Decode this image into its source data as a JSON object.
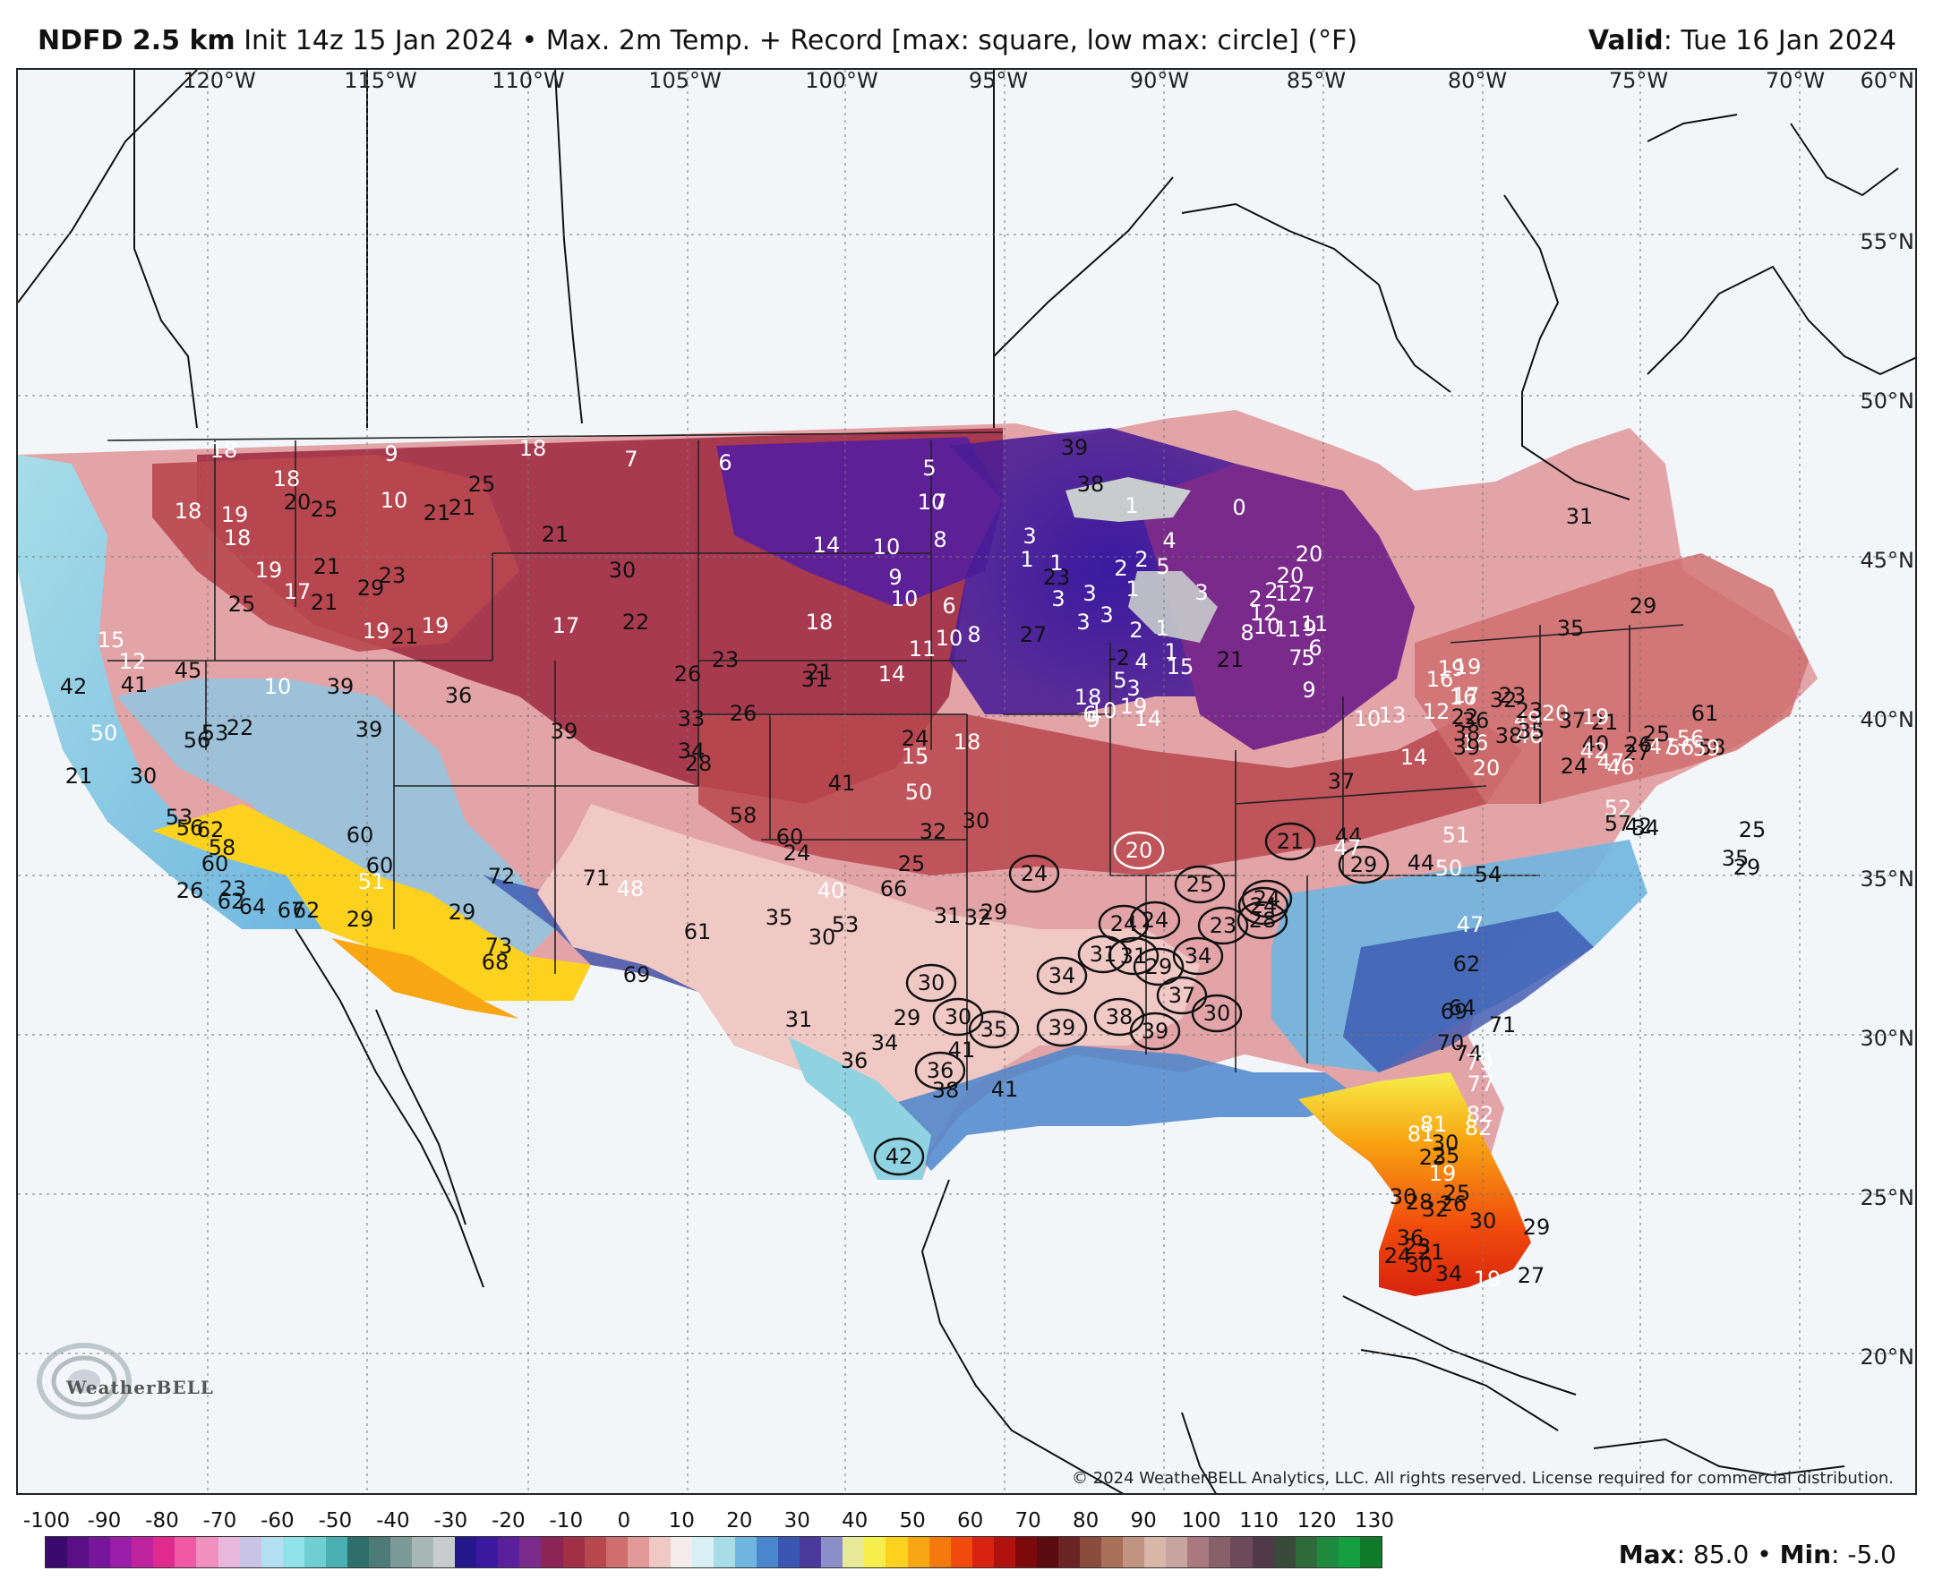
{
  "header": {
    "model": "NDFD 2.5 km",
    "description": "Init 14z 15 Jan 2024 • Max. 2m Temp. + Record [max: square, low max: circle] (°F)",
    "valid_label": "Valid",
    "valid_date": ": Tue 16 Jan 2024"
  },
  "map": {
    "longitude_labels": [
      "120°W",
      "115°W",
      "110°W",
      "105°W",
      "100°W",
      "95°W",
      "90°W",
      "85°W",
      "80°W",
      "75°W",
      "70°W"
    ],
    "latitude_labels": [
      "60°N",
      "55°N",
      "50°N",
      "45°N",
      "40°N",
      "35°N",
      "30°N",
      "25°N",
      "20°N"
    ],
    "temperature_labels": [
      {
        "t": "18",
        "c": "w"
      },
      {
        "t": "9",
        "c": "w"
      },
      {
        "t": "18",
        "c": "w"
      },
      {
        "t": "7",
        "c": "w"
      },
      {
        "t": "6",
        "c": "w"
      },
      {
        "t": "5",
        "c": "w"
      },
      {
        "t": "18",
        "c": "w"
      },
      {
        "t": "25",
        "c": "k"
      },
      {
        "t": "18",
        "c": "w"
      },
      {
        "t": "19",
        "c": "w"
      },
      {
        "t": "20",
        "c": "k"
      },
      {
        "t": "25",
        "c": "k"
      },
      {
        "t": "10",
        "c": "w"
      },
      {
        "t": "21",
        "c": "k"
      },
      {
        "t": "21",
        "c": "k"
      },
      {
        "t": "10",
        "c": "w"
      },
      {
        "t": "7",
        "c": "w"
      },
      {
        "t": "18",
        "c": "w"
      },
      {
        "t": "21",
        "c": "k"
      },
      {
        "t": "14",
        "c": "w"
      },
      {
        "t": "10",
        "c": "w"
      },
      {
        "t": "8",
        "c": "w"
      },
      {
        "t": "19",
        "c": "w"
      },
      {
        "t": "21",
        "c": "k"
      },
      {
        "t": "29",
        "c": "k"
      },
      {
        "t": "23",
        "c": "k"
      },
      {
        "t": "30",
        "c": "k"
      },
      {
        "t": "25",
        "c": "k"
      },
      {
        "t": "17",
        "c": "w"
      },
      {
        "t": "21",
        "c": "k"
      },
      {
        "t": "9",
        "c": "w"
      },
      {
        "t": "10",
        "c": "w"
      },
      {
        "t": "6",
        "c": "w"
      },
      {
        "t": "23",
        "c": "k"
      },
      {
        "t": "19",
        "c": "w"
      },
      {
        "t": "21",
        "c": "k"
      },
      {
        "t": "19",
        "c": "w"
      },
      {
        "t": "17",
        "c": "w"
      },
      {
        "t": "22",
        "c": "k"
      },
      {
        "t": "18",
        "c": "w"
      },
      {
        "t": "11",
        "c": "w"
      },
      {
        "t": "10",
        "c": "w"
      },
      {
        "t": "8",
        "c": "w"
      },
      {
        "t": "23",
        "c": "k"
      },
      {
        "t": "26",
        "c": "k"
      },
      {
        "t": "21",
        "c": "k"
      },
      {
        "t": "14",
        "c": "w"
      },
      {
        "t": "10",
        "c": "w"
      },
      {
        "t": "39",
        "c": "k"
      },
      {
        "t": "36",
        "c": "k"
      },
      {
        "t": "33",
        "c": "k"
      },
      {
        "t": "31",
        "c": "k"
      },
      {
        "t": "22",
        "c": "k"
      },
      {
        "t": "39",
        "c": "k"
      },
      {
        "t": "39",
        "c": "k"
      },
      {
        "t": "34",
        "c": "k"
      },
      {
        "t": "28",
        "c": "k"
      },
      {
        "t": "26",
        "c": "k"
      },
      {
        "t": "24",
        "c": "k"
      },
      {
        "t": "15",
        "c": "w"
      },
      {
        "t": "18",
        "c": "w"
      },
      {
        "t": "15",
        "c": "w"
      },
      {
        "t": "12",
        "c": "w"
      },
      {
        "t": "45",
        "c": "k"
      },
      {
        "t": "41",
        "c": "k"
      },
      {
        "t": "42",
        "c": "k"
      },
      {
        "t": "50",
        "c": "w"
      },
      {
        "t": "56",
        "c": "k"
      },
      {
        "t": "53",
        "c": "k"
      },
      {
        "t": "41",
        "c": "k"
      },
      {
        "t": "50",
        "c": "w"
      },
      {
        "t": "27",
        "c": "k"
      },
      {
        "t": "21",
        "c": "k"
      },
      {
        "t": "30",
        "c": "k"
      },
      {
        "t": "53",
        "c": "k"
      },
      {
        "t": "56",
        "c": "k"
      },
      {
        "t": "62",
        "c": "k"
      },
      {
        "t": "58",
        "c": "k"
      },
      {
        "t": "60",
        "c": "k"
      },
      {
        "t": "60",
        "c": "k"
      },
      {
        "t": "60",
        "c": "k"
      },
      {
        "t": "58",
        "c": "k"
      },
      {
        "t": "60",
        "c": "k"
      },
      {
        "t": "24",
        "c": "k"
      },
      {
        "t": "32",
        "c": "k"
      },
      {
        "t": "30",
        "c": "k"
      },
      {
        "t": "25",
        "c": "k"
      },
      {
        "t": "23",
        "c": "k"
      },
      {
        "t": "26",
        "c": "k"
      },
      {
        "t": "62",
        "c": "k"
      },
      {
        "t": "64",
        "c": "k"
      },
      {
        "t": "67",
        "c": "k"
      },
      {
        "t": "62",
        "c": "k"
      },
      {
        "t": "71",
        "c": "k"
      },
      {
        "t": "72",
        "c": "k"
      },
      {
        "t": "48",
        "c": "w"
      },
      {
        "t": "51",
        "c": "w"
      },
      {
        "t": "40",
        "c": "w"
      },
      {
        "t": "66",
        "c": "k"
      },
      {
        "t": "29",
        "c": "k"
      },
      {
        "t": "29",
        "c": "k"
      },
      {
        "t": "73",
        "c": "k"
      },
      {
        "t": "68",
        "c": "k"
      },
      {
        "t": "61",
        "c": "k"
      },
      {
        "t": "69",
        "c": "k"
      },
      {
        "t": "35",
        "c": "k"
      },
      {
        "t": "53",
        "c": "k"
      },
      {
        "t": "30",
        "c": "k"
      },
      {
        "t": "31",
        "c": "k"
      },
      {
        "t": "32",
        "c": "k"
      },
      {
        "t": "29",
        "c": "k"
      },
      {
        "t": "29",
        "c": "k"
      },
      {
        "t": "31",
        "c": "k"
      },
      {
        "t": "34",
        "c": "k"
      },
      {
        "t": "41",
        "c": "k"
      },
      {
        "t": "36",
        "c": "k"
      },
      {
        "t": "38",
        "c": "k"
      },
      {
        "t": "41",
        "c": "k"
      },
      {
        "t": "39",
        "c": "k"
      },
      {
        "t": "38",
        "c": "k"
      },
      {
        "t": "1",
        "c": "w"
      },
      {
        "t": "0",
        "c": "w"
      },
      {
        "t": "3",
        "c": "w"
      },
      {
        "t": "2",
        "c": "w"
      },
      {
        "t": "4",
        "c": "w"
      },
      {
        "t": "1",
        "c": "w"
      },
      {
        "t": "1",
        "c": "w"
      },
      {
        "t": "2",
        "c": "w"
      },
      {
        "t": "5",
        "c": "w"
      },
      {
        "t": "3",
        "c": "w"
      },
      {
        "t": "3",
        "c": "w"
      },
      {
        "t": "1",
        "c": "w"
      },
      {
        "t": "3",
        "c": "w"
      },
      {
        "t": "3",
        "c": "w"
      },
      {
        "t": "3",
        "c": "w"
      },
      {
        "t": "2",
        "c": "w"
      },
      {
        "t": "1",
        "c": "w"
      },
      {
        "t": "-2",
        "c": "k"
      },
      {
        "t": "1",
        "c": "w"
      },
      {
        "t": "4",
        "c": "w"
      },
      {
        "t": "5",
        "c": "w"
      },
      {
        "t": "3",
        "c": "w"
      },
      {
        "t": "6",
        "c": "w"
      },
      {
        "t": "9",
        "c": "w"
      },
      {
        "t": "10",
        "c": "w"
      },
      {
        "t": "14",
        "c": "w"
      },
      {
        "t": "15",
        "c": "w"
      },
      {
        "t": "18",
        "c": "w"
      },
      {
        "t": "19",
        "c": "w"
      },
      {
        "t": "21",
        "c": "k"
      },
      {
        "t": "20",
        "c": "w"
      },
      {
        "t": "20",
        "c": "w"
      },
      {
        "t": "2",
        "c": "w"
      },
      {
        "t": "12",
        "c": "w"
      },
      {
        "t": "7",
        "c": "w"
      },
      {
        "t": "11",
        "c": "w"
      },
      {
        "t": "11",
        "c": "w"
      },
      {
        "t": "10",
        "c": "w"
      },
      {
        "t": "9",
        "c": "w"
      },
      {
        "t": "12",
        "c": "w"
      },
      {
        "t": "6",
        "c": "w"
      },
      {
        "t": "8",
        "c": "w"
      },
      {
        "t": "2",
        "c": "w"
      },
      {
        "t": "7",
        "c": "w"
      },
      {
        "t": "5",
        "c": "w"
      },
      {
        "t": "9",
        "c": "w"
      },
      {
        "t": "10",
        "c": "w"
      },
      {
        "t": "13",
        "c": "w"
      },
      {
        "t": "14",
        "c": "w"
      },
      {
        "t": "12",
        "c": "w"
      },
      {
        "t": "16",
        "c": "w"
      },
      {
        "t": "16",
        "c": "w"
      },
      {
        "t": "17",
        "c": "w"
      },
      {
        "t": "19",
        "c": "w"
      },
      {
        "t": "19",
        "c": "w"
      },
      {
        "t": "16",
        "c": "w"
      },
      {
        "t": "20",
        "c": "w"
      },
      {
        "t": "36",
        "c": "k"
      },
      {
        "t": "38",
        "c": "k"
      },
      {
        "t": "37",
        "c": "k"
      },
      {
        "t": "44",
        "c": "k"
      },
      {
        "t": "47",
        "c": "w"
      },
      {
        "t": "50",
        "c": "w"
      },
      {
        "t": "44",
        "c": "k"
      },
      {
        "t": "51",
        "c": "w"
      },
      {
        "t": "54",
        "c": "k"
      },
      {
        "t": "47",
        "c": "w"
      },
      {
        "t": "62",
        "c": "k"
      },
      {
        "t": "64",
        "c": "k"
      },
      {
        "t": "69",
        "c": "k"
      },
      {
        "t": "70",
        "c": "k"
      },
      {
        "t": "71",
        "c": "k"
      },
      {
        "t": "74",
        "c": "k"
      },
      {
        "t": "79",
        "c": "w"
      },
      {
        "t": "77",
        "c": "w"
      },
      {
        "t": "82",
        "c": "w"
      },
      {
        "t": "82",
        "c": "w"
      },
      {
        "t": "81",
        "c": "w"
      },
      {
        "t": "81",
        "c": "w"
      },
      {
        "t": "23",
        "c": "k"
      },
      {
        "t": "25",
        "c": "k"
      },
      {
        "t": "30",
        "c": "k"
      },
      {
        "t": "19",
        "c": "w"
      },
      {
        "t": "25",
        "c": "k"
      },
      {
        "t": "26",
        "c": "k"
      },
      {
        "t": "28",
        "c": "k"
      },
      {
        "t": "32",
        "c": "k"
      },
      {
        "t": "30",
        "c": "k"
      },
      {
        "t": "36",
        "c": "k"
      },
      {
        "t": "24",
        "c": "k"
      },
      {
        "t": "23",
        "c": "k"
      },
      {
        "t": "21",
        "c": "k"
      },
      {
        "t": "19",
        "c": "w"
      },
      {
        "t": "27",
        "c": "k"
      },
      {
        "t": "29",
        "c": "k"
      },
      {
        "t": "30",
        "c": "k"
      },
      {
        "t": "34",
        "c": "k"
      },
      {
        "t": "30",
        "c": "k"
      },
      {
        "t": "31",
        "c": "k"
      },
      {
        "t": "29",
        "c": "k"
      },
      {
        "t": "35",
        "c": "k"
      },
      {
        "t": "32",
        "c": "k"
      },
      {
        "t": "38",
        "c": "k"
      },
      {
        "t": "39",
        "c": "k"
      },
      {
        "t": "46",
        "c": "w"
      },
      {
        "t": "49",
        "c": "w"
      },
      {
        "t": "23",
        "c": "k"
      },
      {
        "t": "22",
        "c": "k"
      },
      {
        "t": "21",
        "c": "k"
      },
      {
        "t": "19",
        "c": "w"
      },
      {
        "t": "23",
        "c": "k"
      },
      {
        "t": "20",
        "c": "w"
      },
      {
        "t": "35",
        "c": "k"
      },
      {
        "t": "37",
        "c": "k"
      },
      {
        "t": "40",
        "c": "k"
      },
      {
        "t": "42",
        "c": "w"
      },
      {
        "t": "47",
        "c": "w"
      },
      {
        "t": "56",
        "c": "w"
      },
      {
        "t": "61",
        "c": "k"
      },
      {
        "t": "56",
        "c": "w"
      },
      {
        "t": "58",
        "c": "k"
      },
      {
        "t": "59",
        "c": "w"
      },
      {
        "t": "26",
        "c": "k"
      },
      {
        "t": "25",
        "c": "k"
      },
      {
        "t": "27",
        "c": "k"
      },
      {
        "t": "24",
        "c": "k"
      },
      {
        "t": "46",
        "c": "w"
      },
      {
        "t": "47",
        "c": "w"
      },
      {
        "t": "52",
        "c": "w"
      },
      {
        "t": "57",
        "c": "k"
      },
      {
        "t": "34",
        "c": "k"
      },
      {
        "t": "42",
        "c": "k"
      },
      {
        "t": "35",
        "c": "k"
      },
      {
        "t": "29",
        "c": "k"
      },
      {
        "t": "25",
        "c": "k"
      }
    ],
    "circled_records": [
      {
        "t": "20",
        "c": "w"
      },
      {
        "t": "21",
        "c": "k"
      },
      {
        "t": "24",
        "c": "k"
      },
      {
        "t": "24",
        "c": "k"
      },
      {
        "t": "24",
        "c": "k"
      },
      {
        "t": "25",
        "c": "k"
      },
      {
        "t": "24",
        "c": "k"
      },
      {
        "t": "24",
        "c": "k"
      },
      {
        "t": "23",
        "c": "k"
      },
      {
        "t": "28",
        "c": "k"
      },
      {
        "t": "29",
        "c": "k"
      },
      {
        "t": "31",
        "c": "k"
      },
      {
        "t": "34",
        "c": "k"
      },
      {
        "t": "31",
        "c": "k"
      },
      {
        "t": "29",
        "c": "k"
      },
      {
        "t": "34",
        "c": "k"
      },
      {
        "t": "37",
        "c": "k"
      },
      {
        "t": "30",
        "c": "k"
      },
      {
        "t": "30",
        "c": "k"
      },
      {
        "t": "35",
        "c": "k"
      },
      {
        "t": "39",
        "c": "k"
      },
      {
        "t": "38",
        "c": "k"
      },
      {
        "t": "39",
        "c": "k"
      },
      {
        "t": "30",
        "c": "k"
      },
      {
        "t": "36",
        "c": "k"
      },
      {
        "t": "42",
        "c": "k"
      }
    ],
    "copyright": "© 2024 WeatherBELL Analytics, LLC. All rights reserved. License required for commercial distribution.",
    "logo_text": "WeatherBELL"
  },
  "colorbar": {
    "tick_labels": [
      "-100",
      "-90",
      "-80",
      "-70",
      "-60",
      "-50",
      "-40",
      "-30",
      "-20",
      "-10",
      "0",
      "10",
      "20",
      "30",
      "40",
      "50",
      "60",
      "70",
      "80",
      "90",
      "100",
      "110",
      "120",
      "130"
    ],
    "colors": [
      "#3b0a6e",
      "#5a0f86",
      "#76169a",
      "#9a1ea8",
      "#c0239e",
      "#e02a8e",
      "#f05aa5",
      "#f290c0",
      "#e8b8dc",
      "#c9c4e6",
      "#b2e0f0",
      "#8fe2e8",
      "#6fcfd2",
      "#4bb0b2",
      "#2e6f6c",
      "#4d7c78",
      "#7c9a98",
      "#a8b6b6",
      "#c8cccc",
      "#24188a",
      "#3a18a0",
      "#5a1f9a",
      "#7a2a8a",
      "#8c2455",
      "#a12f46",
      "#b9484e",
      "#cf6e6e",
      "#e29a98",
      "#f0c8c4",
      "#f4ecec",
      "#d8f0f4",
      "#a8dde8",
      "#6fb6e0",
      "#4a86cc",
      "#3a56b0",
      "#4a3a9a",
      "#8c8ec8",
      "#e8ea9a",
      "#f6ee4a",
      "#fcd21e",
      "#f8a612",
      "#f47a0e",
      "#f04a0c",
      "#d8230e",
      "#b0120e",
      "#7c0a0c",
      "#5a0c10",
      "#6a2424",
      "#8a4c3c",
      "#a87058",
      "#c09480",
      "#d8b6a8",
      "#c8a4a0",
      "#a87a80",
      "#88606a",
      "#6c4a5a",
      "#503a48",
      "#3a4a3a",
      "#2e6a3a",
      "#1e8a3e",
      "#14a040",
      "#0e7a2a"
    ]
  },
  "footer": {
    "max_label": "Max",
    "max_value": ": 85.0 • ",
    "min_label": "Min",
    "min_value": ": -5.0"
  }
}
